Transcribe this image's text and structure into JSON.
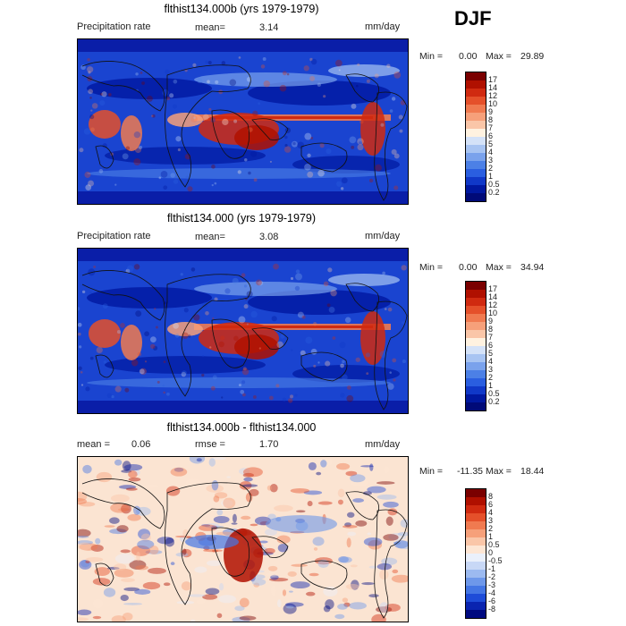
{
  "season": "DJF",
  "panels": [
    {
      "title": "flthist134.000b (yrs 1979-1979)",
      "left_label": "Precipitation rate",
      "mean_label": "mean=",
      "mean_value": "3.14",
      "units": "mm/day",
      "min_label": "Min =",
      "min_value": "0.00",
      "max_label": "Max =",
      "max_value": "29.89",
      "scale": "abs"
    },
    {
      "title": "flthist134.000 (yrs 1979-1979)",
      "left_label": "Precipitation rate",
      "mean_label": "mean=",
      "mean_value": "3.08",
      "units": "mm/day",
      "min_label": "Min =",
      "min_value": "0.00",
      "max_label": "Max =",
      "max_value": "34.94",
      "scale": "abs"
    },
    {
      "title": "flthist134.000b - flthist134.000",
      "mean_label": "mean =",
      "mean_value": "0.06",
      "rmse_label": "rmse =",
      "rmse_value": "1.70",
      "units": "mm/day",
      "min_label": "Min =",
      "min_value": "-11.35",
      "max_label": "Max =",
      "max_value": "18.44",
      "scale": "diff"
    }
  ],
  "colorbars": {
    "abs": {
      "labels": [
        "17",
        "14",
        "12",
        "10",
        "9",
        "8",
        "7",
        "6",
        "5",
        "4",
        "3",
        "2",
        "1",
        "0.5",
        "0.2"
      ],
      "colors": [
        "#7a0000",
        "#b01000",
        "#d02a10",
        "#e5502a",
        "#f07a50",
        "#f6a07a",
        "#fac6a8",
        "#fff2e0",
        "#d4e2f8",
        "#a8c4f2",
        "#7aa2ec",
        "#4c80e6",
        "#2a5ee0",
        "#1038c8",
        "#0018a0",
        "#000a78"
      ]
    },
    "diff": {
      "labels": [
        "8",
        "6",
        "4",
        "3",
        "2",
        "1",
        "0.5",
        "0",
        "-0.5",
        "-1",
        "-2",
        "-3",
        "-4",
        "-6",
        "-8"
      ],
      "colors": [
        "#7a0000",
        "#b01000",
        "#d02a10",
        "#e5502a",
        "#f07a50",
        "#f6a07a",
        "#fac6a8",
        "#fde6d4",
        "#eaf0fb",
        "#c8d8f6",
        "#9cbaf0",
        "#6e98ea",
        "#4476e4",
        "#1e4cd8",
        "#0a24b0",
        "#000a80"
      ]
    }
  }
}
